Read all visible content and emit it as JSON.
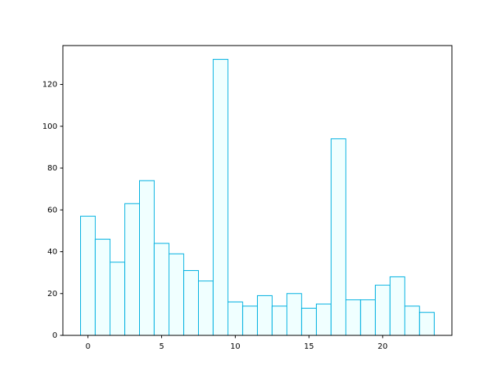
{
  "chart_data": {
    "type": "histogram",
    "bins": [
      -0.5,
      0.5,
      1.5,
      2.5,
      3.5,
      4.5,
      5.5,
      6.5,
      7.5,
      8.5,
      9.5,
      10.5,
      11.5,
      12.5,
      13.5,
      14.5,
      15.5,
      16.5,
      17.5,
      18.5,
      19.5,
      20.5,
      21.5,
      22.5,
      23.5
    ],
    "counts": [
      57,
      46,
      35,
      63,
      74,
      44,
      39,
      31,
      26,
      132,
      16,
      14,
      19,
      14,
      20,
      13,
      15,
      94,
      17,
      17,
      24,
      28,
      14,
      11
    ],
    "color": "#f0ffff",
    "edgecolor": "#00b0e0",
    "xlim": [
      -1.7,
      24.7
    ],
    "xticks": [
      0,
      5,
      10,
      15,
      20
    ],
    "ylim": [
      0,
      138.6
    ],
    "yticks": [
      0,
      20,
      40,
      60,
      80,
      100,
      120
    ]
  }
}
